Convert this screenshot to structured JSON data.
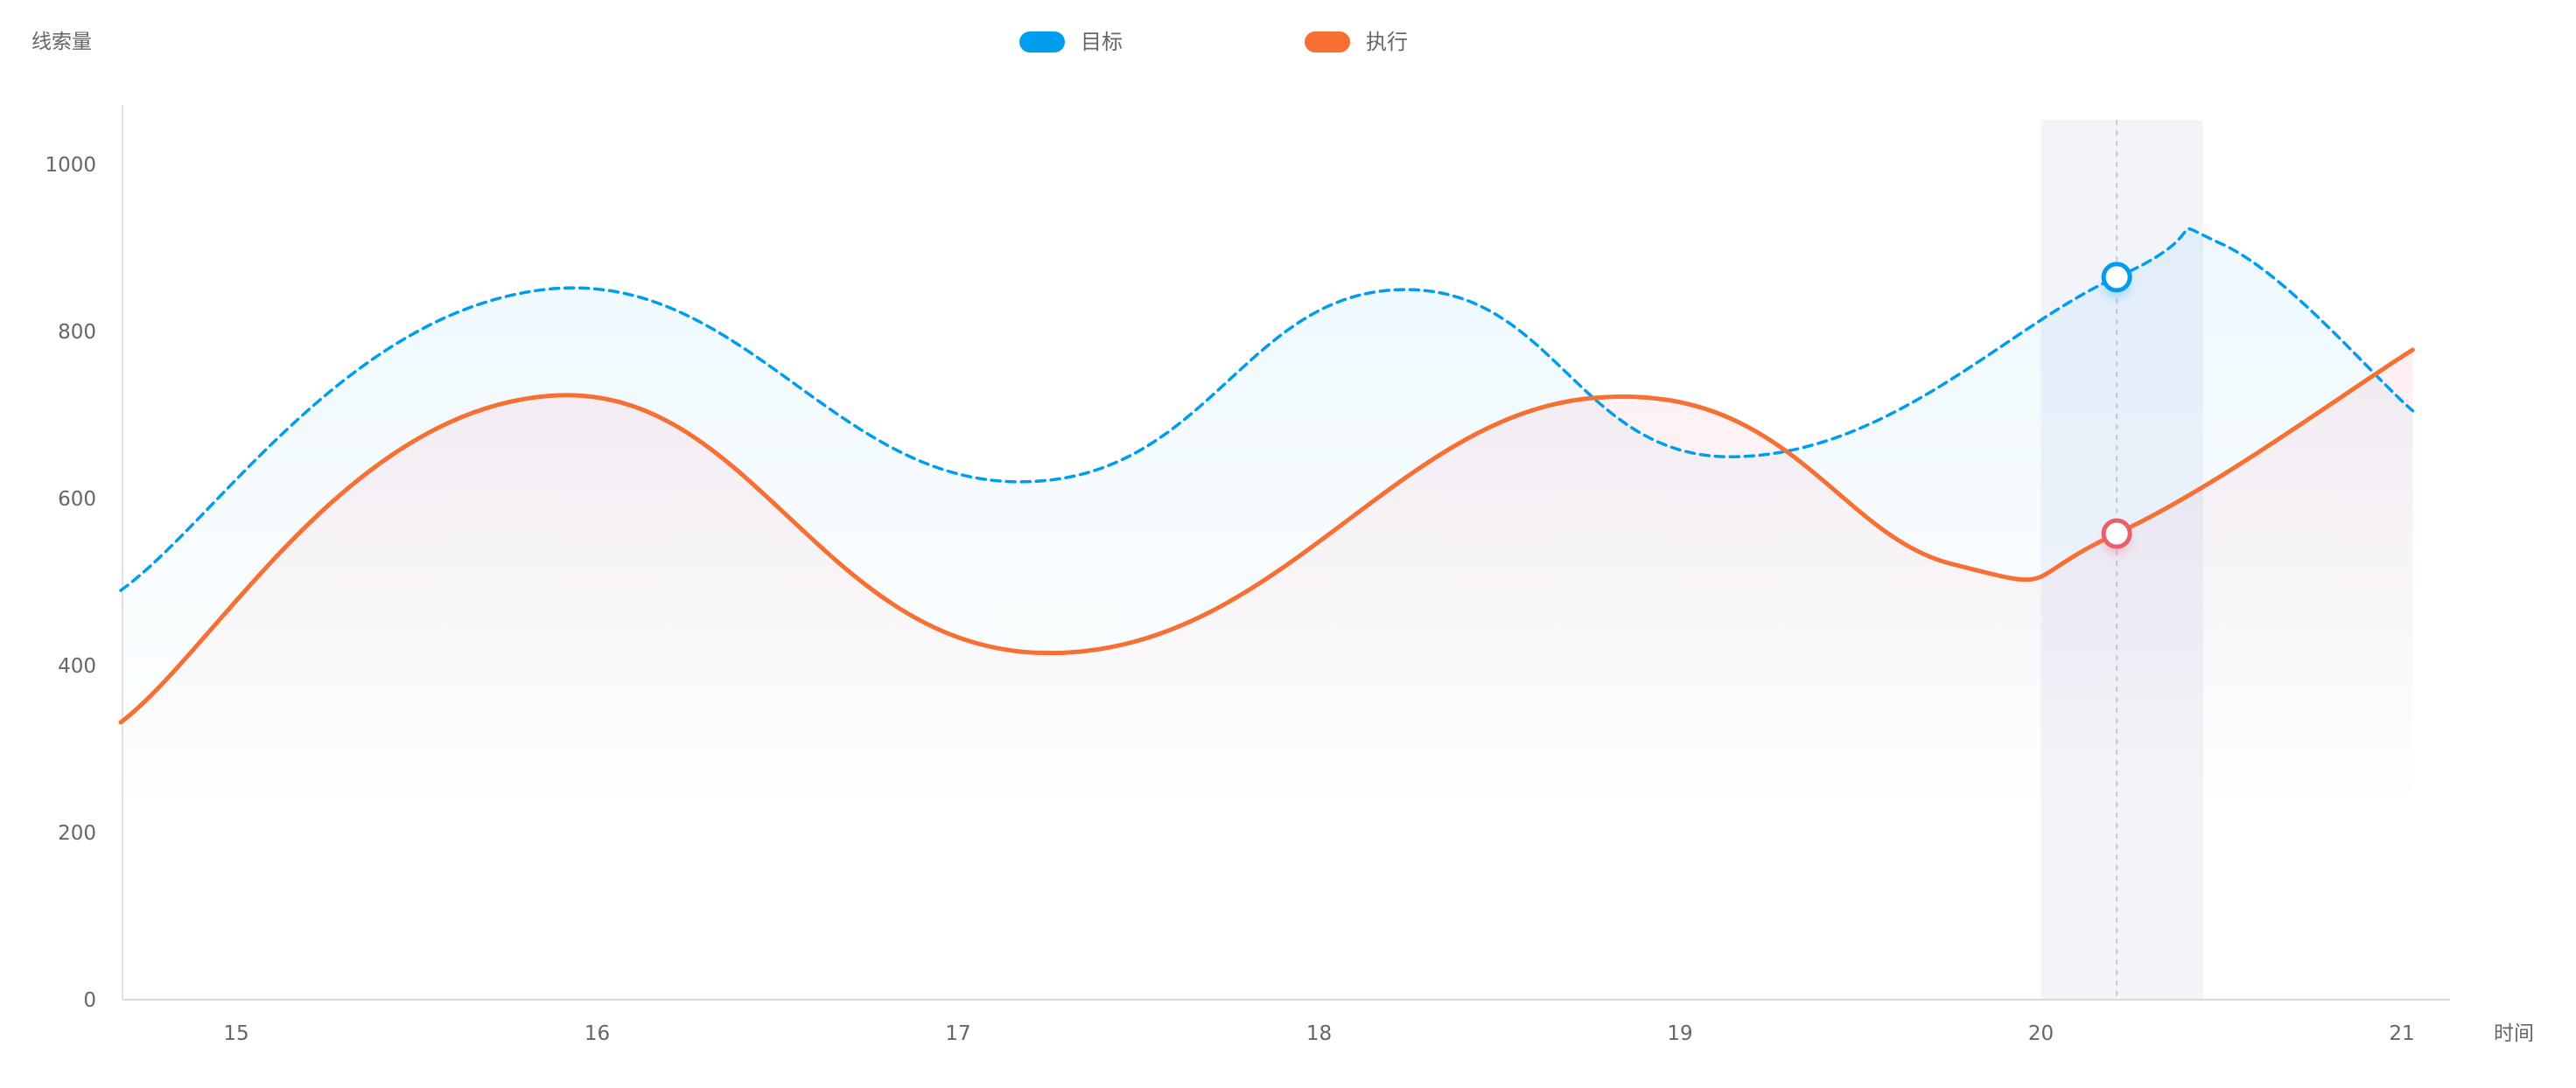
{
  "chart_data": {
    "type": "line",
    "ylabel": "线索量",
    "xlabel": "时间",
    "ylim": [
      0,
      1000
    ],
    "yticks": [
      0,
      200,
      400,
      600,
      800,
      1000
    ],
    "xticks": [
      "15",
      "16",
      "17",
      "18",
      "19",
      "20",
      "21"
    ],
    "xlim": [
      14.68,
      21.55
    ],
    "legend": {
      "placement": "top-center",
      "entries": [
        {
          "name": "目标",
          "color": "#009dee"
        },
        {
          "name": "执行",
          "color": "#f86f34"
        }
      ]
    },
    "grid": false,
    "series": [
      {
        "name": "目标",
        "color": "#009dee",
        "style": "dashed",
        "fill": "area-gradient",
        "x": [
          14.68,
          15.85,
          17.17,
          18.22,
          19.15,
          20.21,
          20.5,
          21.03
        ],
        "values": [
          490,
          850,
          620,
          850,
          650,
          865,
          905,
          705
        ]
      },
      {
        "name": "执行",
        "color": "#f86f34",
        "style": "solid",
        "fill": "area-gradient",
        "x": [
          14.68,
          15.87,
          17.25,
          18.75,
          19.75,
          20.21,
          21.03
        ],
        "values": [
          332,
          723,
          415,
          720,
          522,
          558,
          778
        ]
      }
    ],
    "highlight": {
      "x": 20.21,
      "band": [
        20.0,
        20.45
      ],
      "points": [
        {
          "series": "目标",
          "value": 865,
          "color": "#009dee"
        },
        {
          "series": "执行",
          "value": 558,
          "color": "#e8606a"
        }
      ]
    }
  }
}
